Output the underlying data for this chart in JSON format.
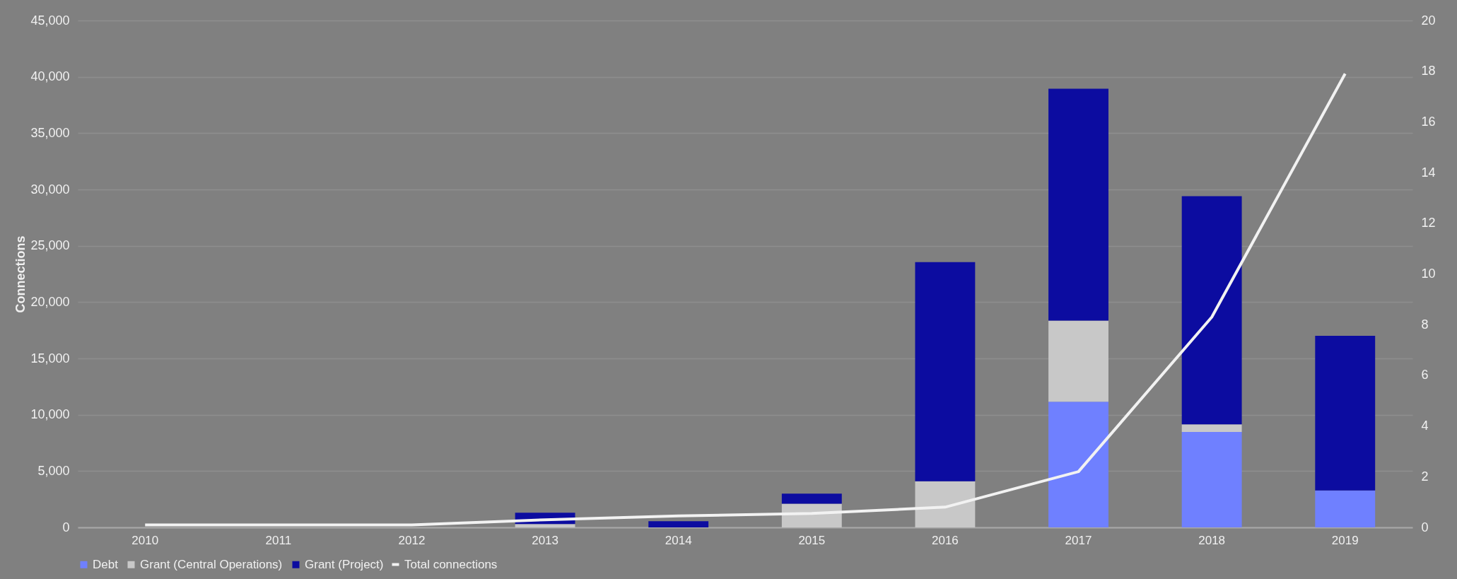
{
  "chart_data": {
    "type": "bar",
    "stacked": true,
    "ylabel": "Connections",
    "categories": [
      "2010",
      "2011",
      "2012",
      "2013",
      "2014",
      "2015",
      "2016",
      "2017",
      "2018",
      "2019"
    ],
    "series": [
      {
        "name": "Debt",
        "color": "#6f80ff",
        "values": [
          0,
          0,
          0,
          0,
          0,
          0,
          0,
          11150,
          8470,
          3280
        ]
      },
      {
        "name": "Grant (Central Operations)",
        "color": "#c8c8c8",
        "values": [
          0,
          0,
          0,
          300,
          0,
          2100,
          4100,
          7200,
          670,
          0
        ]
      },
      {
        "name": "Grant (Project)",
        "color": "#0c0ca0",
        "values": [
          0,
          0,
          0,
          1000,
          550,
          900,
          19450,
          20600,
          20260,
          13730
        ]
      },
      {
        "name": "Total connections",
        "type": "line",
        "axis": "y2",
        "color": "#f2f2f2",
        "values": [
          0.1,
          0.1,
          0.1,
          0.3,
          0.45,
          0.55,
          0.8,
          2.2,
          8.3,
          17.9
        ]
      }
    ],
    "ylim": [
      0,
      45000
    ],
    "yticks": [
      {
        "value": 0,
        "label": "0"
      },
      {
        "value": 5000,
        "label": "5,000"
      },
      {
        "value": 10000,
        "label": "10,000"
      },
      {
        "value": 15000,
        "label": "15,000"
      },
      {
        "value": 20000,
        "label": "20,000"
      },
      {
        "value": 25000,
        "label": "25,000"
      },
      {
        "value": 30000,
        "label": "30,000"
      },
      {
        "value": 35000,
        "label": "35,000"
      },
      {
        "value": 40000,
        "label": "40,000"
      },
      {
        "value": 45000,
        "label": "45,000"
      }
    ],
    "y2lim": [
      0,
      20
    ],
    "y2ticks": [
      0,
      2,
      4,
      6,
      8,
      10,
      12,
      14,
      16,
      18,
      20
    ],
    "grid": "y",
    "legend": "bottom"
  }
}
